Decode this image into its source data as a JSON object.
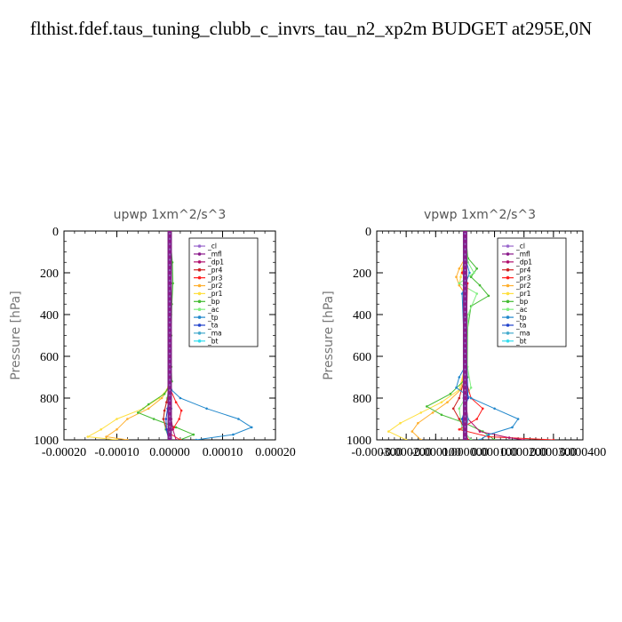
{
  "page": {
    "title": "flthist.fdef.taus_tuning_clubb_c_invrs_tau_n2_xp2m  BUDGET at295E,0N"
  },
  "legend": [
    {
      "label": "_cl",
      "color": "#9966cc"
    },
    {
      "label": "_mfl",
      "color": "#8b1a8b"
    },
    {
      "label": "_dp1",
      "color": "#b0106e"
    },
    {
      "label": "_pr4",
      "color": "#cc2222"
    },
    {
      "label": "_pr3",
      "color": "#ff2020"
    },
    {
      "label": "_pr2",
      "color": "#ffb030"
    },
    {
      "label": "_pr1",
      "color": "#ffe040"
    },
    {
      "label": "_bp",
      "color": "#44bb33"
    },
    {
      "label": "_ac",
      "color": "#80ee80"
    },
    {
      "label": "_tp",
      "color": "#2288cc"
    },
    {
      "label": "_ta",
      "color": "#2244cc"
    },
    {
      "label": "_ma",
      "color": "#44aacc"
    },
    {
      "label": "_bt",
      "color": "#33ddee"
    }
  ],
  "chart_data": [
    {
      "type": "line",
      "title": "upwp   1xm^2/s^3",
      "ylabel": "Pressure [hPa]",
      "xlim": [
        -0.0002,
        0.0002
      ],
      "ylim": [
        1000,
        0
      ],
      "xticks": [
        "-0.00020",
        "-0.00010",
        "0.00000",
        "0.00010",
        "0.00020"
      ],
      "yticks": [
        "0",
        "200",
        "400",
        "600",
        "800",
        "1000"
      ],
      "legend_position": "top-right",
      "series": [
        {
          "name": "_pr1",
          "p": [
            0,
            700,
            760,
            800,
            850,
            900,
            950,
            985,
            1000
          ],
          "x": [
            0,
            0,
            -5e-06,
            -2e-05,
            -5e-05,
            -0.0001,
            -0.00013,
            -0.000155,
            -0.0001
          ]
        },
        {
          "name": "_pr2",
          "p": [
            0,
            700,
            760,
            800,
            850,
            900,
            950,
            985,
            1000
          ],
          "x": [
            0,
            0,
            -4e-06,
            -1.5e-05,
            -4e-05,
            -8e-05,
            -0.0001,
            -0.00012,
            -8e-05
          ]
        },
        {
          "name": "_bp",
          "p": [
            0,
            150,
            250,
            350,
            500,
            650,
            720,
            780,
            830,
            870,
            900,
            940,
            975,
            1000
          ],
          "x": [
            0,
            5e-06,
            6e-06,
            4e-06,
            3e-06,
            3e-06,
            4e-06,
            -1e-05,
            -4e-05,
            -6e-05,
            -3e-05,
            1.2e-05,
            4.5e-05,
            2e-05
          ]
        },
        {
          "name": "_ac",
          "p": [
            0,
            200,
            400,
            700,
            800,
            900,
            950,
            1000
          ],
          "x": [
            0,
            3e-06,
            3e-06,
            2e-06,
            -5e-06,
            -1.2e-05,
            -8e-06,
            0
          ]
        },
        {
          "name": "_pr3",
          "p": [
            0,
            750,
            820,
            860,
            900,
            940,
            970,
            1000
          ],
          "x": [
            0,
            0,
            1.2e-05,
            2.2e-05,
            1.8e-05,
            8e-06,
            0,
            2e-05
          ]
        },
        {
          "name": "_pr4",
          "p": [
            0,
            750,
            820,
            860,
            900,
            950,
            1000
          ],
          "x": [
            0,
            0,
            -6e-06,
            -1e-05,
            -1.2e-05,
            -6e-06,
            0
          ]
        },
        {
          "name": "_dp1",
          "p": [
            0,
            800,
            900,
            950,
            1000
          ],
          "x": [
            0,
            0,
            3e-06,
            6e-06,
            1.2e-05
          ]
        },
        {
          "name": "_tp",
          "p": [
            0,
            700,
            760,
            800,
            850,
            900,
            940,
            975,
            1000
          ],
          "x": [
            0,
            0,
            3e-06,
            2e-05,
            7e-05,
            0.00013,
            0.000155,
            0.00012,
            5e-05
          ]
        },
        {
          "name": "_ta",
          "p": [
            0,
            750,
            850,
            900,
            950,
            1000
          ],
          "x": [
            0,
            0,
            -4e-06,
            -7e-06,
            -6e-06,
            -2e-06
          ]
        },
        {
          "name": "_ma",
          "p": [
            0,
            750,
            850,
            950,
            1000
          ],
          "x": [
            0,
            0,
            3e-06,
            2e-06,
            1e-06
          ]
        },
        {
          "name": "_bt",
          "p": [
            0,
            1000
          ],
          "x": [
            0,
            0
          ]
        },
        {
          "name": "_mfl",
          "p": [
            0,
            1000
          ],
          "x": [
            0,
            0
          ]
        },
        {
          "name": "_cl",
          "p": [
            0,
            1000
          ],
          "x": [
            0,
            0
          ]
        }
      ]
    },
    {
      "type": "line",
      "title": "vpwp   1xm^2/s^3",
      "ylabel": "Pressure [hPa]",
      "xlim": [
        -0.0003,
        0.0004
      ],
      "ylim": [
        1000,
        0
      ],
      "xticks": [
        "-0.000300",
        "-0.000200",
        "-0.000100",
        "0.000000",
        "0.000100",
        "0.000200",
        "0.000300",
        "0.000400"
      ],
      "yticks": [
        "0",
        "200",
        "400",
        "600",
        "800",
        "1000"
      ],
      "legend_position": "top-right",
      "series": [
        {
          "name": "_pr1",
          "p": [
            0,
            130,
            180,
            220,
            260,
            300,
            650,
            760,
            820,
            870,
            920,
            960,
            1000
          ],
          "x": [
            0,
            0,
            -1e-05,
            -1.5e-05,
            -2e-05,
            0,
            0,
            -2e-05,
            -8e-05,
            -0.00015,
            -0.00022,
            -0.00026,
            -0.0002
          ]
        },
        {
          "name": "_pr2",
          "p": [
            0,
            130,
            180,
            220,
            260,
            300,
            650,
            760,
            820,
            870,
            920,
            960,
            1000
          ],
          "x": [
            0,
            0,
            -2e-05,
            -3e-05,
            -2e-05,
            0,
            0,
            -1.5e-05,
            -6e-05,
            -0.00011,
            -0.00016,
            -0.00018,
            -0.00015
          ]
        },
        {
          "name": "_bp",
          "p": [
            0,
            130,
            180,
            220,
            260,
            310,
            360,
            500,
            600,
            700,
            780,
            840,
            880,
            920,
            960,
            1000
          ],
          "x": [
            0,
            1e-05,
            4e-05,
            2e-05,
            5e-05,
            8e-05,
            2e-05,
            5e-06,
            3e-06,
            8e-06,
            -5e-05,
            -0.00013,
            -8e-05,
            0,
            6e-05,
            0.0001
          ]
        },
        {
          "name": "_ac",
          "p": [
            0,
            150,
            200,
            250,
            300,
            400,
            650,
            750,
            850,
            950,
            1000
          ],
          "x": [
            0,
            1e-05,
            3e-05,
            -2e-05,
            4e-05,
            1e-05,
            8e-06,
            2e-05,
            -2e-05,
            -1e-05,
            2e-05
          ]
        },
        {
          "name": "_pr3",
          "p": [
            0,
            150,
            200,
            250,
            700,
            800,
            850,
            900,
            950,
            985,
            1000
          ],
          "x": [
            0,
            5e-06,
            -1e-05,
            8e-06,
            0,
            2e-05,
            6e-05,
            4e-05,
            -2e-05,
            8e-05,
            0.0003
          ]
        },
        {
          "name": "_pr4",
          "p": [
            0,
            700,
            800,
            850,
            900,
            950,
            1000
          ],
          "x": [
            0,
            0,
            -2e-05,
            -4e-05,
            -2e-05,
            0,
            1e-05
          ]
        },
        {
          "name": "_dp1",
          "p": [
            0,
            800,
            900,
            960,
            990,
            1000
          ],
          "x": [
            0,
            0,
            1e-05,
            5e-05,
            0.00015,
            0.0002
          ]
        },
        {
          "name": "_tp",
          "p": [
            0,
            150,
            200,
            300,
            650,
            700,
            750,
            800,
            850,
            900,
            940,
            975,
            1000
          ],
          "x": [
            0,
            5e-06,
            1.5e-05,
            -1e-05,
            0,
            -2e-05,
            -3e-05,
            2e-05,
            0.0001,
            0.00018,
            0.00016,
            8e-05,
            5e-05
          ]
        },
        {
          "name": "_ta",
          "p": [
            0,
            400,
            800,
            900,
            1000
          ],
          "x": [
            0,
            0,
            1e-05,
            -1e-05,
            0
          ]
        },
        {
          "name": "_ma",
          "p": [
            0,
            400,
            800,
            900,
            1000
          ],
          "x": [
            0,
            0,
            -5e-06,
            1e-05,
            0
          ]
        },
        {
          "name": "_bt",
          "p": [
            0,
            1000
          ],
          "x": [
            0,
            0
          ]
        },
        {
          "name": "_mfl",
          "p": [
            0,
            1000
          ],
          "x": [
            0,
            0
          ]
        },
        {
          "name": "_cl",
          "p": [
            0,
            1000
          ],
          "x": [
            0,
            0
          ]
        }
      ]
    }
  ]
}
